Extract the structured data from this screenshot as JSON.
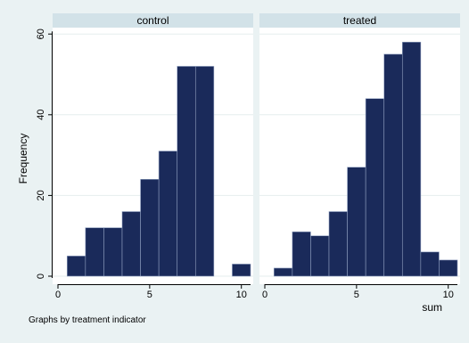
{
  "chart_data": {
    "type": "bar",
    "ylabel": "Frequency",
    "xlabel": "sum",
    "note": "Graphs by treatment indicator",
    "ylim": [
      0,
      60
    ],
    "yticks": [
      0,
      20,
      40,
      60
    ],
    "xlim": [
      0,
      10.5
    ],
    "xticks": [
      0,
      5,
      10
    ],
    "bin_width": 1,
    "bar_color": "#1a2a5a",
    "panel_header_color": "#d2e2e8",
    "panels": [
      {
        "name": "control",
        "bins": [
          {
            "x": 1,
            "value": 5
          },
          {
            "x": 2,
            "value": 12
          },
          {
            "x": 3,
            "value": 12
          },
          {
            "x": 4,
            "value": 16
          },
          {
            "x": 5,
            "value": 24
          },
          {
            "x": 6,
            "value": 31
          },
          {
            "x": 7,
            "value": 52
          },
          {
            "x": 8,
            "value": 52
          },
          {
            "x": 10,
            "value": 3
          }
        ]
      },
      {
        "name": "treated",
        "bins": [
          {
            "x": 1,
            "value": 2
          },
          {
            "x": 2,
            "value": 11
          },
          {
            "x": 3,
            "value": 10
          },
          {
            "x": 4,
            "value": 16
          },
          {
            "x": 5,
            "value": 27
          },
          {
            "x": 6,
            "value": 44
          },
          {
            "x": 7,
            "value": 55
          },
          {
            "x": 8,
            "value": 58
          },
          {
            "x": 9,
            "value": 6
          },
          {
            "x": 10,
            "value": 4
          }
        ]
      }
    ]
  }
}
